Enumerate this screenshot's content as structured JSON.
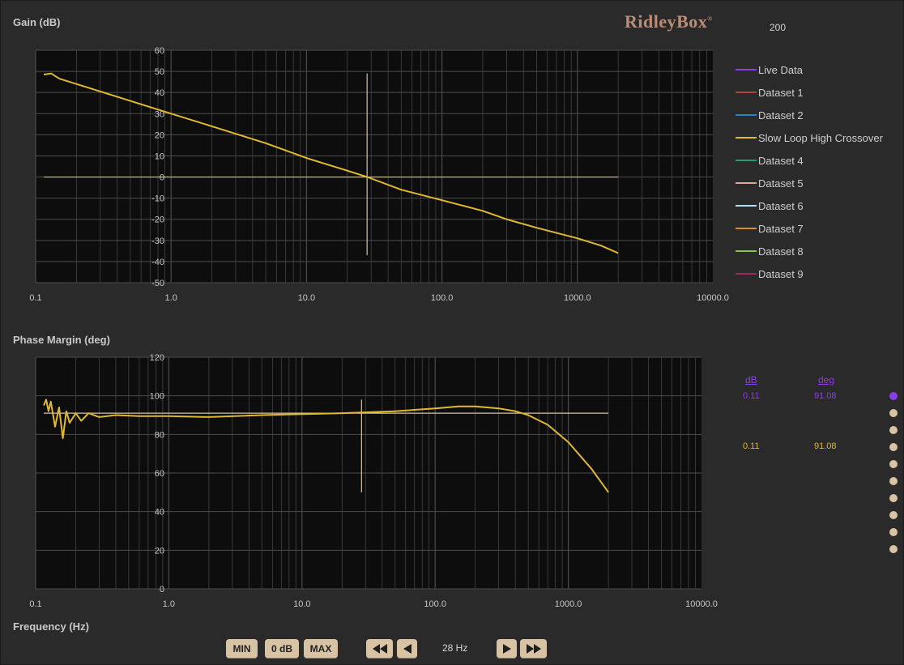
{
  "brand": {
    "name": "RidleyBox",
    "mark": "®",
    "value": "200"
  },
  "labels": {
    "gain_title": "Gain (dB)",
    "phase_title": "Phase Margin (deg)",
    "freq_title": "Frequency (Hz)"
  },
  "colors": {
    "background": "#2a2a2a",
    "plot_bg": "#0d0d0d",
    "grid": "#4b4b4b",
    "trace": "#e0b930",
    "cursor": "#d8c3a5",
    "accent": "#8c3ee6",
    "button": "#d8c3a5"
  },
  "legend": [
    {
      "label": "Live Data",
      "color": "#8c3ee6"
    },
    {
      "label": "Dataset 1",
      "color": "#b5423e"
    },
    {
      "label": "Dataset 2",
      "color": "#2f7fcf"
    },
    {
      "label": "Slow Loop High Crossover",
      "color": "#e0b930"
    },
    {
      "label": "Dataset 4",
      "color": "#2f9a6a"
    },
    {
      "label": "Dataset 5",
      "color": "#e2a39a"
    },
    {
      "label": "Dataset 6",
      "color": "#b9def2"
    },
    {
      "label": "Dataset 7",
      "color": "#e08a2a"
    },
    {
      "label": "Dataset 8",
      "color": "#8bc34a"
    },
    {
      "label": "Dataset 9",
      "color": "#a3265f"
    }
  ],
  "readout": {
    "db_head": "dB",
    "deg_head": "deg",
    "rows": [
      {
        "db": "0.11",
        "deg": "91.08",
        "color": "#8c3ee6"
      },
      {
        "db": "0.11",
        "deg": "91.08",
        "color": "#e0b930"
      }
    ]
  },
  "dataset_selector": {
    "count": 9,
    "active_index": 0
  },
  "controls": {
    "min_label": "MIN",
    "zero_db_label": "0 dB",
    "max_label": "MAX",
    "rewind_icon": "fast-rewind-icon",
    "step_back_icon": "step-back-icon",
    "step_forward_icon": "step-forward-icon",
    "fast_forward_icon": "fast-forward-icon",
    "frequency_readout": "28 Hz"
  },
  "chart_data": [
    {
      "type": "line",
      "ylabel": "Gain (dB)",
      "x_scale": "log",
      "xlim": [
        0.1,
        10000
      ],
      "ylim": [
        -50,
        60
      ],
      "x_ticks": [
        0.1,
        1,
        10,
        100,
        1000,
        10000
      ],
      "x_tick_labels": [
        "0.1",
        "1.0",
        "10.0",
        "100.0",
        "1000.0",
        "10000.0"
      ],
      "y_ticks": [
        -50,
        -40,
        -30,
        -20,
        -10,
        0,
        10,
        20,
        30,
        40,
        50,
        60
      ],
      "grid": true,
      "legend_position": "right",
      "cursor_x": 28,
      "cursor_y_range": [
        -37,
        49
      ],
      "reference_line": {
        "y": 0,
        "x_range": [
          0.115,
          2000
        ]
      },
      "series": [
        {
          "name": "Slow Loop High Crossover",
          "color": "#e0b930",
          "x": [
            0.115,
            0.13,
            0.15,
            0.2,
            0.3,
            0.5,
            1,
            2,
            5,
            10,
            20,
            28,
            50,
            100,
            200,
            300,
            500,
            1000,
            1500,
            2000
          ],
          "y": [
            48.5,
            49,
            46.5,
            44,
            40.5,
            36,
            30,
            24,
            16,
            9,
            3,
            0,
            -6,
            -11,
            -16,
            -20,
            -24,
            -29,
            -32.5,
            -36
          ]
        }
      ]
    },
    {
      "type": "line",
      "ylabel": "Phase Margin (deg)",
      "xlabel": "Frequency (Hz)",
      "x_scale": "log",
      "xlim": [
        0.1,
        10000
      ],
      "ylim": [
        0,
        120
      ],
      "x_ticks": [
        0.1,
        1,
        10,
        100,
        1000,
        10000
      ],
      "x_tick_labels": [
        "0.1",
        "1.0",
        "10.0",
        "100.0",
        "1000.0",
        "10000.0"
      ],
      "y_ticks": [
        0,
        20,
        40,
        60,
        80,
        100,
        120
      ],
      "grid": true,
      "cursor_x": 28,
      "cursor_y_range": [
        50,
        98
      ],
      "reference_line": {
        "y": 91,
        "x_range": [
          0.115,
          2000
        ]
      },
      "series": [
        {
          "name": "Slow Loop High Crossover",
          "color": "#e0b930",
          "x": [
            0.115,
            0.12,
            0.125,
            0.13,
            0.14,
            0.15,
            0.16,
            0.17,
            0.18,
            0.2,
            0.22,
            0.25,
            0.3,
            0.4,
            0.6,
            1,
            2,
            5,
            10,
            20,
            50,
            100,
            150,
            200,
            300,
            400,
            500,
            700,
            1000,
            1500,
            2000
          ],
          "y": [
            95,
            98,
            92,
            97,
            84,
            94,
            78,
            92,
            86,
            91,
            87,
            91,
            89,
            90,
            89.5,
            89.5,
            89,
            90,
            90.5,
            91,
            92,
            93.5,
            94.5,
            94.5,
            93.5,
            92,
            90,
            85,
            76,
            62,
            50
          ]
        }
      ]
    }
  ]
}
